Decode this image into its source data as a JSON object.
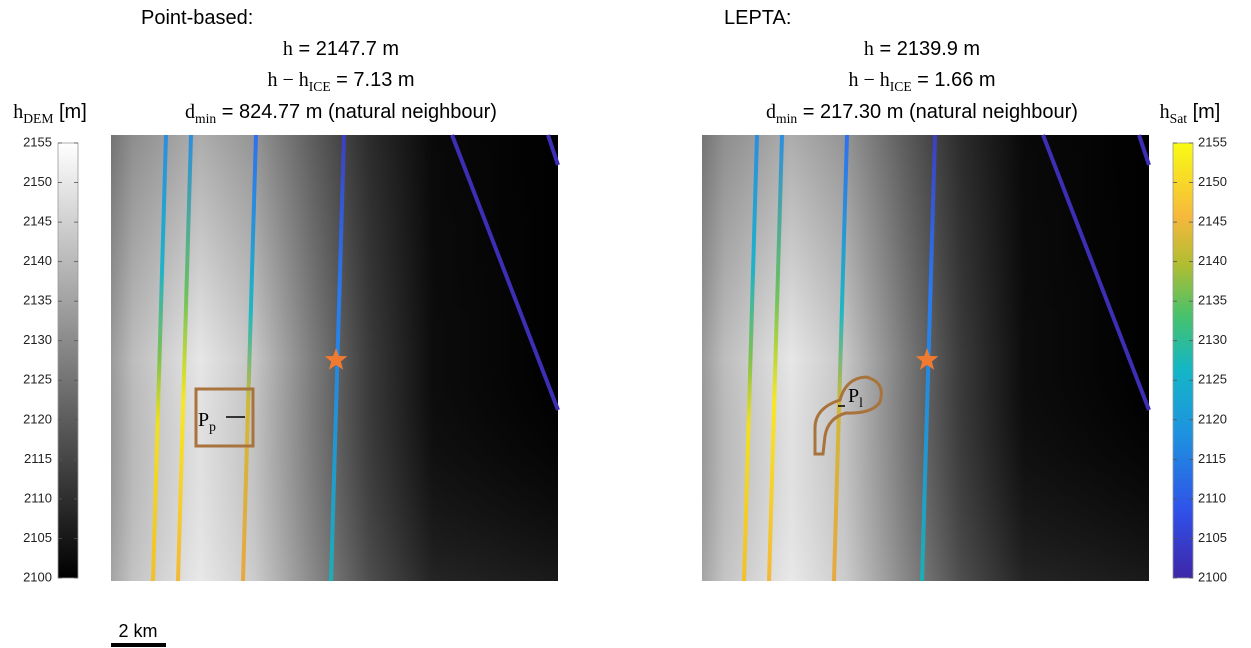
{
  "panels": [
    {
      "title": "Point-based:",
      "h": {
        "lhs": "h",
        "rhs": " = 2147.7 m"
      },
      "dh": {
        "lhs": "h − h",
        "sub": "ICE",
        "rhs": " = 7.13 m"
      },
      "dmin": {
        "lhs": "d",
        "sub": "min",
        "rhs": " = 824.77 m (natural neighbour)"
      },
      "point": {
        "lhs": "P",
        "sub": "p"
      }
    },
    {
      "title": "LEPTA:",
      "h": {
        "lhs": "h",
        "rhs": " = 2139.9 m"
      },
      "dh": {
        "lhs": "h − h",
        "sub": "ICE",
        "rhs": " = 1.66 m"
      },
      "dmin": {
        "lhs": "d",
        "sub": "min",
        "rhs": " = 217.30 m (natural neighbour)"
      },
      "point": {
        "lhs": "P",
        "sub": "l"
      }
    }
  ],
  "colorbars": [
    {
      "label": {
        "lhs": "h",
        "sub": "DEM",
        "rhs": " [m]"
      },
      "lim": [
        2100,
        2155
      ],
      "ticks": [
        2100,
        2105,
        2110,
        2115,
        2120,
        2125,
        2130,
        2135,
        2140,
        2145,
        2150,
        2155
      ]
    },
    {
      "label": {
        "lhs": "h",
        "sub": "Sat",
        "rhs": " [m]"
      },
      "lim": [
        2100,
        2155
      ],
      "ticks": [
        2100,
        2105,
        2110,
        2115,
        2120,
        2125,
        2130,
        2135,
        2140,
        2145,
        2150,
        2155
      ]
    }
  ],
  "scale_bar": "2 km"
}
